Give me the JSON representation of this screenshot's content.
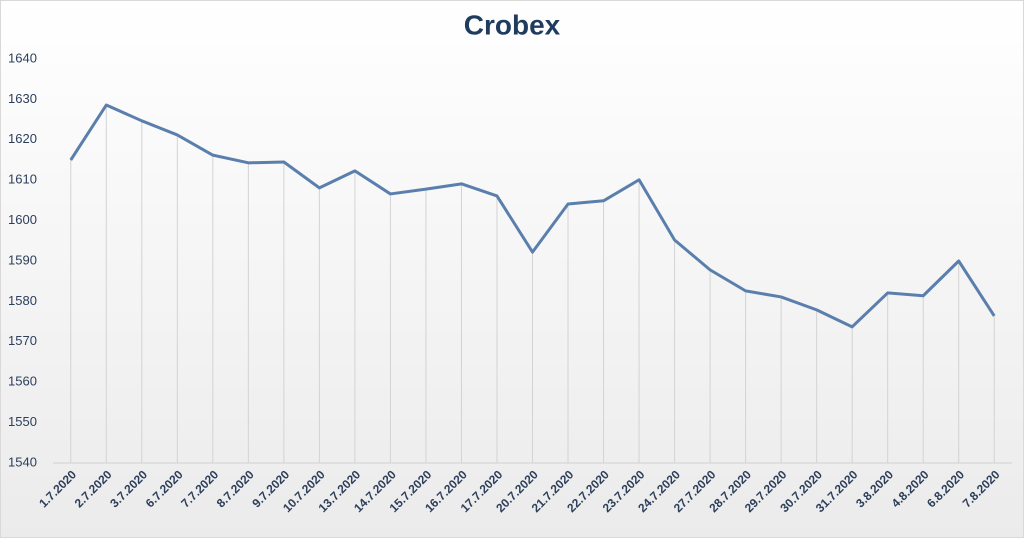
{
  "chart_data": {
    "type": "line",
    "title": "Crobex",
    "categories": [
      "1.7.2020",
      "2.7.2020",
      "3.7.2020",
      "6.7.2020",
      "7.7.2020",
      "8.7.2020",
      "9.7.2020",
      "10.7.2020",
      "13.7.2020",
      "14.7.2020",
      "15.7.2020",
      "16.7.2020",
      "17.7.2020",
      "20.7.2020",
      "21.7.2020",
      "22.7.2020",
      "23.7.2020",
      "24.7.2020",
      "27.7.2020",
      "28.7.2020",
      "29.7.2020",
      "30.7.2020",
      "31.7.2020",
      "3.8.2020",
      "4.8.2020",
      "6.8.2020",
      "7.8.2020"
    ],
    "values": [
      1615,
      1628.6,
      1624.7,
      1621.2,
      1616.2,
      1614.3,
      1614.5,
      1608.1,
      1612.3,
      1606.6,
      1607.8,
      1609.1,
      1606.1,
      1592.2,
      1604.1,
      1604.9,
      1610.1,
      1595.2,
      1587.8,
      1582.6,
      1581.1,
      1577.9,
      1573.7,
      1582.1,
      1581.4,
      1590.0,
      1576.4
    ],
    "color": "#5b7fad",
    "ylim": [
      1540,
      1640
    ],
    "yticks": [
      1540,
      1550,
      1560,
      1570,
      1580,
      1590,
      1600,
      1610,
      1620,
      1630,
      1640
    ],
    "drop_lines": true
  }
}
